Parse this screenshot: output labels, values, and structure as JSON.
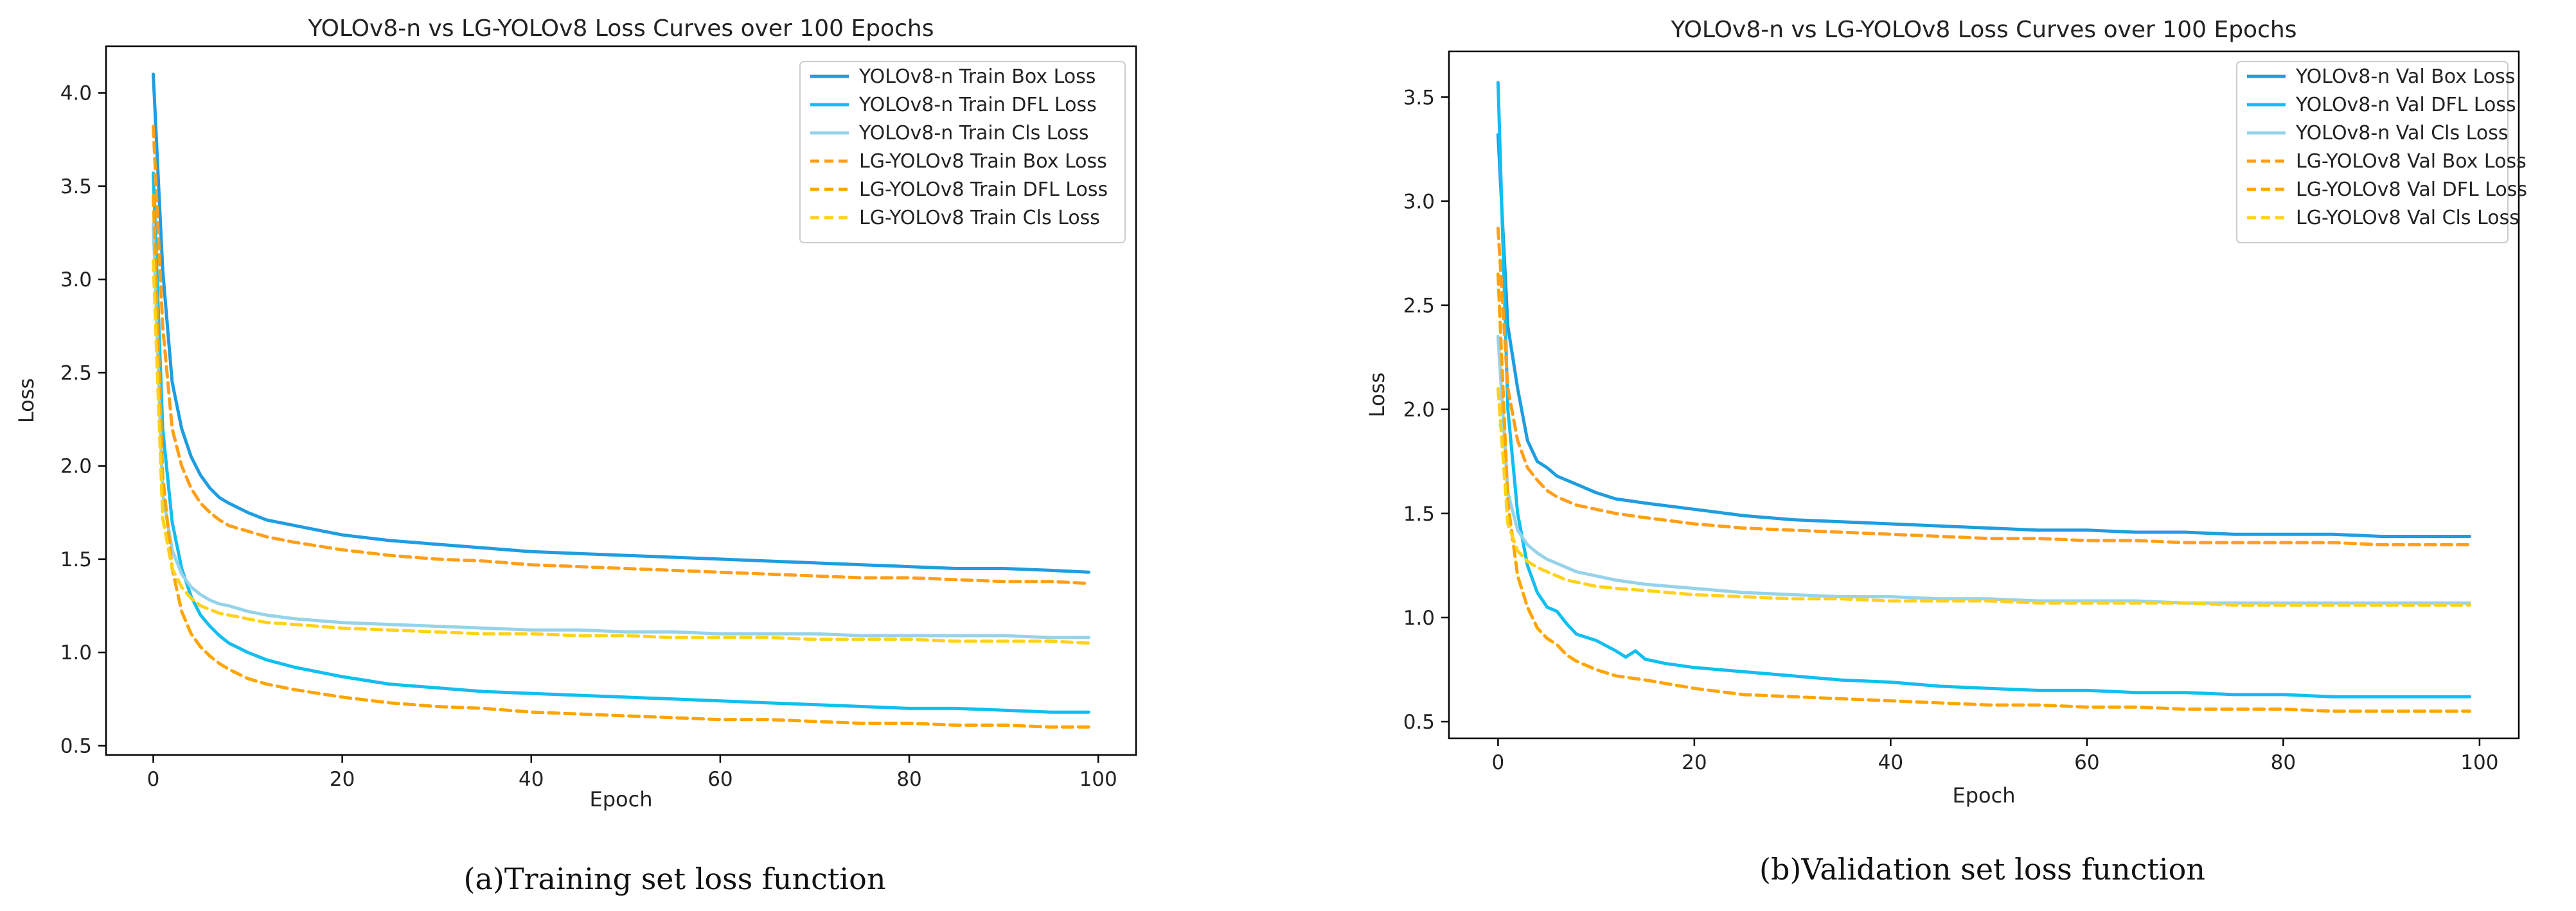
{
  "chart_data": [
    {
      "type": "line",
      "title": "YOLOv8-n vs LG-YOLOv8 Loss Curves over 100 Epochs",
      "xlabel": "Epoch",
      "ylabel": "Loss",
      "caption": "(a)Training set loss function",
      "xlim": [
        -5,
        104
      ],
      "ylim": [
        0.45,
        4.25
      ],
      "xticks": [
        0,
        20,
        40,
        60,
        80,
        100
      ],
      "yticks": [
        0.5,
        1.0,
        1.5,
        2.0,
        2.5,
        3.0,
        3.5,
        4.0
      ],
      "ytick_labels": [
        "0.5",
        "1.0",
        "1.5",
        "2.0",
        "2.5",
        "3.0",
        "3.5",
        "4.0"
      ],
      "legend_position": "top-right",
      "grid": false,
      "series": [
        {
          "name": "YOLOv8-n  Train Box Loss",
          "color": "#1f9de0",
          "style": "solid",
          "x": [
            0,
            1,
            2,
            3,
            4,
            5,
            6,
            7,
            8,
            10,
            12,
            15,
            20,
            25,
            30,
            35,
            40,
            45,
            50,
            55,
            60,
            65,
            70,
            75,
            80,
            85,
            90,
            95,
            99
          ],
          "y": [
            4.1,
            3.05,
            2.45,
            2.2,
            2.05,
            1.95,
            1.88,
            1.83,
            1.8,
            1.75,
            1.71,
            1.68,
            1.63,
            1.6,
            1.58,
            1.56,
            1.54,
            1.53,
            1.52,
            1.51,
            1.5,
            1.49,
            1.48,
            1.47,
            1.46,
            1.45,
            1.45,
            1.44,
            1.43
          ]
        },
        {
          "name": "YOLOv8-n  Train DFL Loss",
          "color": "#10bff0",
          "style": "solid",
          "x": [
            0,
            1,
            2,
            3,
            4,
            5,
            6,
            7,
            8,
            10,
            12,
            15,
            20,
            25,
            30,
            35,
            40,
            45,
            50,
            55,
            60,
            65,
            70,
            75,
            80,
            85,
            90,
            95,
            99
          ],
          "y": [
            3.57,
            2.2,
            1.7,
            1.45,
            1.3,
            1.2,
            1.14,
            1.09,
            1.05,
            1.0,
            0.96,
            0.92,
            0.87,
            0.83,
            0.81,
            0.79,
            0.78,
            0.77,
            0.76,
            0.75,
            0.74,
            0.73,
            0.72,
            0.71,
            0.7,
            0.7,
            0.69,
            0.68,
            0.68
          ]
        },
        {
          "name": "YOLOv8-n  Train Cls Loss",
          "color": "#96d3ea",
          "style": "solid",
          "x": [
            0,
            1,
            2,
            3,
            4,
            5,
            6,
            7,
            8,
            10,
            12,
            15,
            20,
            25,
            30,
            35,
            40,
            45,
            50,
            55,
            60,
            65,
            70,
            75,
            80,
            85,
            90,
            95,
            99
          ],
          "y": [
            3.3,
            1.85,
            1.55,
            1.42,
            1.35,
            1.31,
            1.28,
            1.26,
            1.25,
            1.22,
            1.2,
            1.18,
            1.16,
            1.15,
            1.14,
            1.13,
            1.12,
            1.12,
            1.11,
            1.11,
            1.1,
            1.1,
            1.1,
            1.09,
            1.09,
            1.09,
            1.09,
            1.08,
            1.08
          ]
        },
        {
          "name": "LG-YOLOv8 Train Box Loss",
          "color": "#ff9f1a",
          "style": "dashed",
          "x": [
            0,
            1,
            2,
            3,
            4,
            5,
            6,
            7,
            8,
            10,
            12,
            15,
            20,
            25,
            30,
            35,
            40,
            45,
            50,
            55,
            60,
            65,
            70,
            75,
            80,
            85,
            90,
            95,
            99
          ],
          "y": [
            3.82,
            2.75,
            2.2,
            2.0,
            1.88,
            1.8,
            1.75,
            1.71,
            1.68,
            1.65,
            1.62,
            1.59,
            1.55,
            1.52,
            1.5,
            1.49,
            1.47,
            1.46,
            1.45,
            1.44,
            1.43,
            1.42,
            1.41,
            1.4,
            1.4,
            1.39,
            1.38,
            1.38,
            1.37
          ]
        },
        {
          "name": "LG-YOLOv8 Train DFL Loss",
          "color": "#ffa500",
          "style": "dashed",
          "x": [
            0,
            1,
            2,
            3,
            4,
            5,
            6,
            7,
            8,
            10,
            12,
            15,
            20,
            25,
            30,
            35,
            40,
            45,
            50,
            55,
            60,
            65,
            70,
            75,
            80,
            85,
            90,
            95,
            99
          ],
          "y": [
            3.45,
            1.95,
            1.45,
            1.22,
            1.1,
            1.03,
            0.98,
            0.94,
            0.91,
            0.86,
            0.83,
            0.8,
            0.76,
            0.73,
            0.71,
            0.7,
            0.68,
            0.67,
            0.66,
            0.65,
            0.64,
            0.64,
            0.63,
            0.62,
            0.62,
            0.61,
            0.61,
            0.6,
            0.6
          ]
        },
        {
          "name": "LG-YOLOv8 Train Cls Loss",
          "color": "#ffd21a",
          "style": "dashed",
          "x": [
            0,
            1,
            2,
            3,
            4,
            5,
            6,
            7,
            8,
            10,
            12,
            15,
            20,
            25,
            30,
            35,
            40,
            45,
            50,
            55,
            60,
            65,
            70,
            75,
            80,
            85,
            90,
            95,
            99
          ],
          "y": [
            3.1,
            1.72,
            1.45,
            1.35,
            1.29,
            1.25,
            1.23,
            1.21,
            1.2,
            1.18,
            1.16,
            1.15,
            1.13,
            1.12,
            1.11,
            1.1,
            1.1,
            1.09,
            1.09,
            1.08,
            1.08,
            1.08,
            1.07,
            1.07,
            1.07,
            1.06,
            1.06,
            1.06,
            1.05
          ]
        }
      ]
    },
    {
      "type": "line",
      "title": "YOLOv8-n vs LG-YOLOv8 Loss Curves over 100 Epochs",
      "xlabel": "Epoch",
      "ylabel": "Loss",
      "caption": "(b)Validation set loss function",
      "xlim": [
        -5,
        104
      ],
      "ylim": [
        0.42,
        3.72
      ],
      "xticks": [
        0,
        20,
        40,
        60,
        80,
        100
      ],
      "yticks": [
        0.5,
        1.0,
        1.5,
        2.0,
        2.5,
        3.0,
        3.5
      ],
      "ytick_labels": [
        "0.5",
        "1.0",
        "1.5",
        "2.0",
        "2.5",
        "3.0",
        "3.5"
      ],
      "legend_position": "top-right",
      "grid": false,
      "series": [
        {
          "name": "YOLOv8-n  Val Box Loss",
          "color": "#1f9de0",
          "style": "solid",
          "x": [
            0,
            1,
            2,
            3,
            4,
            5,
            6,
            7,
            8,
            10,
            12,
            15,
            20,
            25,
            30,
            35,
            40,
            45,
            50,
            55,
            60,
            65,
            70,
            75,
            80,
            85,
            90,
            95,
            99
          ],
          "y": [
            3.32,
            2.4,
            2.1,
            1.85,
            1.75,
            1.72,
            1.68,
            1.66,
            1.64,
            1.6,
            1.57,
            1.55,
            1.52,
            1.49,
            1.47,
            1.46,
            1.45,
            1.44,
            1.43,
            1.42,
            1.42,
            1.41,
            1.41,
            1.4,
            1.4,
            1.4,
            1.39,
            1.39,
            1.39
          ]
        },
        {
          "name": "YOLOv8-n  Val DFL Loss",
          "color": "#10bff0",
          "style": "solid",
          "x": [
            0,
            1,
            2,
            3,
            4,
            5,
            6,
            7,
            8,
            10,
            12,
            13,
            14,
            15,
            17,
            20,
            25,
            30,
            35,
            40,
            45,
            50,
            55,
            60,
            65,
            70,
            75,
            80,
            85,
            90,
            95,
            99
          ],
          "y": [
            3.57,
            2.0,
            1.5,
            1.25,
            1.12,
            1.05,
            1.03,
            0.97,
            0.92,
            0.89,
            0.84,
            0.81,
            0.84,
            0.8,
            0.78,
            0.76,
            0.74,
            0.72,
            0.7,
            0.69,
            0.67,
            0.66,
            0.65,
            0.65,
            0.64,
            0.64,
            0.63,
            0.63,
            0.62,
            0.62,
            0.62,
            0.62
          ]
        },
        {
          "name": "YOLOv8-n  Val Cls Loss",
          "color": "#96d3ea",
          "style": "solid",
          "x": [
            0,
            1,
            2,
            3,
            4,
            5,
            6,
            7,
            8,
            10,
            12,
            15,
            20,
            25,
            30,
            35,
            40,
            45,
            50,
            55,
            60,
            65,
            70,
            75,
            80,
            85,
            90,
            95,
            99
          ],
          "y": [
            2.35,
            1.6,
            1.42,
            1.35,
            1.31,
            1.28,
            1.26,
            1.24,
            1.22,
            1.2,
            1.18,
            1.16,
            1.14,
            1.12,
            1.11,
            1.1,
            1.1,
            1.09,
            1.09,
            1.08,
            1.08,
            1.08,
            1.07,
            1.07,
            1.07,
            1.07,
            1.07,
            1.07,
            1.07
          ]
        },
        {
          "name": "LG-YOLOv8 Val Box Loss",
          "color": "#ff9f1a",
          "style": "dashed",
          "x": [
            0,
            1,
            2,
            3,
            4,
            5,
            6,
            7,
            8,
            10,
            12,
            15,
            20,
            25,
            30,
            35,
            40,
            45,
            50,
            55,
            60,
            65,
            70,
            75,
            80,
            85,
            90,
            95,
            99
          ],
          "y": [
            2.87,
            2.1,
            1.85,
            1.72,
            1.66,
            1.61,
            1.58,
            1.56,
            1.54,
            1.52,
            1.5,
            1.48,
            1.45,
            1.43,
            1.42,
            1.41,
            1.4,
            1.39,
            1.38,
            1.38,
            1.37,
            1.37,
            1.36,
            1.36,
            1.36,
            1.36,
            1.35,
            1.35,
            1.35
          ]
        },
        {
          "name": "LG-YOLOv8 Val DFL Loss",
          "color": "#ffa500",
          "style": "dashed",
          "x": [
            0,
            1,
            2,
            3,
            4,
            5,
            6,
            7,
            8,
            10,
            12,
            15,
            20,
            25,
            30,
            35,
            40,
            45,
            50,
            55,
            60,
            65,
            70,
            75,
            80,
            85,
            90,
            95,
            99
          ],
          "y": [
            2.65,
            1.55,
            1.2,
            1.05,
            0.95,
            0.9,
            0.87,
            0.82,
            0.79,
            0.75,
            0.72,
            0.7,
            0.66,
            0.63,
            0.62,
            0.61,
            0.6,
            0.59,
            0.58,
            0.58,
            0.57,
            0.57,
            0.56,
            0.56,
            0.56,
            0.55,
            0.55,
            0.55,
            0.55
          ]
        },
        {
          "name": "LG-YOLOv8 Val Cls Loss",
          "color": "#ffd21a",
          "style": "dashed",
          "x": [
            0,
            1,
            2,
            3,
            4,
            5,
            6,
            7,
            8,
            10,
            12,
            15,
            20,
            25,
            30,
            35,
            40,
            45,
            50,
            55,
            60,
            65,
            70,
            75,
            80,
            85,
            90,
            95,
            99
          ],
          "y": [
            2.1,
            1.45,
            1.32,
            1.27,
            1.24,
            1.22,
            1.2,
            1.18,
            1.17,
            1.15,
            1.14,
            1.13,
            1.11,
            1.1,
            1.09,
            1.09,
            1.08,
            1.08,
            1.08,
            1.07,
            1.07,
            1.07,
            1.07,
            1.06,
            1.06,
            1.06,
            1.06,
            1.06,
            1.06
          ]
        }
      ]
    }
  ]
}
